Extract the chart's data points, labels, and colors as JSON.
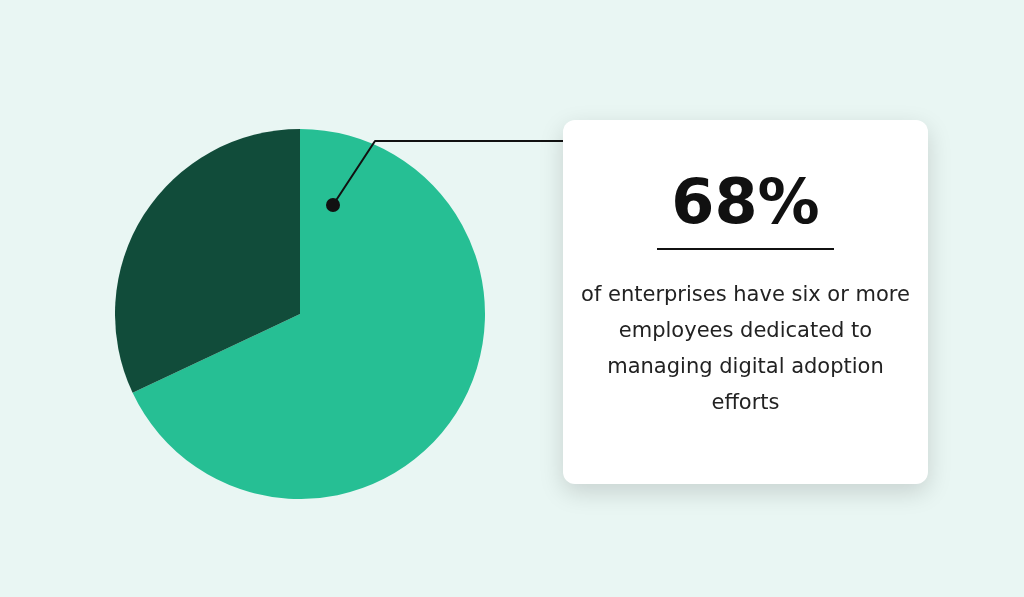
{
  "chart_data": {
    "type": "pie",
    "categories": [
      null,
      null
    ],
    "values": [
      68,
      32
    ],
    "colors": [
      "#26bf94",
      "#114c3a"
    ],
    "value_labels": [
      "68%",
      null
    ],
    "annotations": [
      "of enterprises have six or more employees dedicated to managing digital adoption efforts"
    ]
  }
}
